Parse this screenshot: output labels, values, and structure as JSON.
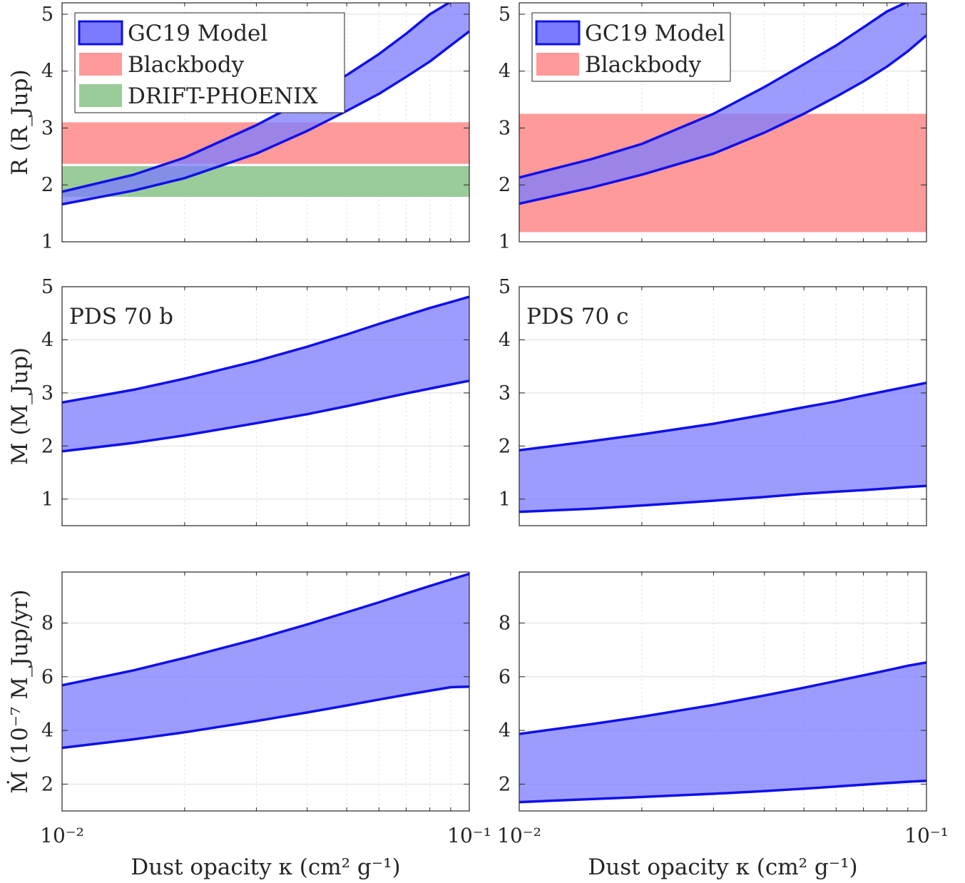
{
  "figure": {
    "xlabel": "Dust opacity κ (cm² g⁻¹)",
    "shared_legend": {
      "model": "GC19 Model",
      "blackbody": "Blackbody",
      "drift": "DRIFT-PHOENIX"
    },
    "colors": {
      "model_fill": "#7b7bff",
      "model_line": "#1010e8",
      "blackbody_fill": "#ff9a9a",
      "drift_fill": "#99cc99",
      "grid": "#dddddd",
      "axis": "#262626"
    }
  },
  "chart_data": [
    {
      "id": "r-b",
      "type": "area",
      "row": 0,
      "col": 0,
      "xscale": "log",
      "xlim": [
        0.01,
        0.1
      ],
      "ylim": [
        1,
        5.2
      ],
      "yticks": [
        1,
        2,
        3,
        4,
        5
      ],
      "yticklabels": [
        "1",
        "2",
        "3",
        "4",
        "5"
      ],
      "ylabel": "R (R_Jup)",
      "show_xticklabels": false,
      "annotation": "",
      "legend": [
        "GC19 Model",
        "Blackbody",
        "DRIFT-PHOENIX"
      ],
      "bands": [
        {
          "name": "Blackbody",
          "range": [
            2.37,
            3.1
          ],
          "color": "#ff9a9a"
        },
        {
          "name": "DRIFT-PHOENIX",
          "range": [
            1.79,
            2.33
          ],
          "color": "#99cc99"
        }
      ],
      "model": {
        "name": "GC19 Model",
        "x": [
          0.01,
          0.015,
          0.02,
          0.03,
          0.04,
          0.05,
          0.06,
          0.07,
          0.08,
          0.09,
          0.1
        ],
        "upper": [
          1.88,
          2.18,
          2.48,
          3.05,
          3.52,
          3.93,
          4.3,
          4.66,
          5.0,
          5.22,
          5.22
        ],
        "lower": [
          1.66,
          1.9,
          2.12,
          2.55,
          2.95,
          3.3,
          3.6,
          3.9,
          4.17,
          4.45,
          4.7
        ]
      }
    },
    {
      "id": "r-c",
      "type": "area",
      "row": 0,
      "col": 1,
      "xscale": "log",
      "xlim": [
        0.01,
        0.1
      ],
      "ylim": [
        1,
        5.2
      ],
      "yticks": [
        1,
        2,
        3,
        4,
        5
      ],
      "yticklabels": [
        "1",
        "2",
        "3",
        "4",
        "5"
      ],
      "ylabel": "",
      "show_xticklabels": false,
      "annotation": "",
      "legend": [
        "GC19 Model",
        "Blackbody"
      ],
      "bands": [
        {
          "name": "Blackbody",
          "range": [
            1.17,
            3.25
          ],
          "color": "#ff9a9a"
        }
      ],
      "model": {
        "name": "GC19 Model",
        "x": [
          0.01,
          0.015,
          0.02,
          0.03,
          0.04,
          0.05,
          0.06,
          0.07,
          0.08,
          0.09,
          0.1
        ],
        "upper": [
          2.13,
          2.45,
          2.72,
          3.25,
          3.72,
          4.12,
          4.45,
          4.77,
          5.05,
          5.22,
          5.22
        ],
        "lower": [
          1.67,
          1.95,
          2.18,
          2.55,
          2.92,
          3.25,
          3.55,
          3.82,
          4.08,
          4.35,
          4.63
        ]
      }
    },
    {
      "id": "m-b",
      "type": "area",
      "row": 1,
      "col": 0,
      "xscale": "log",
      "xlim": [
        0.01,
        0.1
      ],
      "ylim": [
        0.5,
        5
      ],
      "yticks": [
        1,
        2,
        3,
        4,
        5
      ],
      "yticklabels": [
        "1",
        "2",
        "3",
        "4",
        "5"
      ],
      "ylabel": "M (M_Jup)",
      "show_xticklabels": false,
      "annotation": "PDS 70 b",
      "legend": [],
      "bands": [],
      "model": {
        "name": "GC19 Model",
        "x": [
          0.01,
          0.015,
          0.02,
          0.03,
          0.04,
          0.05,
          0.06,
          0.07,
          0.08,
          0.09,
          0.1
        ],
        "upper": [
          2.82,
          3.06,
          3.27,
          3.6,
          3.87,
          4.1,
          4.3,
          4.46,
          4.6,
          4.71,
          4.81
        ],
        "lower": [
          1.9,
          2.06,
          2.2,
          2.43,
          2.6,
          2.75,
          2.88,
          2.99,
          3.08,
          3.16,
          3.23
        ]
      }
    },
    {
      "id": "m-c",
      "type": "area",
      "row": 1,
      "col": 1,
      "xscale": "log",
      "xlim": [
        0.01,
        0.1
      ],
      "ylim": [
        0.5,
        5
      ],
      "yticks": [
        1,
        2,
        3,
        4,
        5
      ],
      "yticklabels": [
        "1",
        "2",
        "3",
        "4",
        "5"
      ],
      "ylabel": "",
      "show_xticklabels": false,
      "annotation": "PDS 70 c",
      "legend": [],
      "bands": [],
      "model": {
        "name": "GC19 Model",
        "x": [
          0.01,
          0.015,
          0.02,
          0.03,
          0.04,
          0.05,
          0.06,
          0.07,
          0.08,
          0.09,
          0.1
        ],
        "upper": [
          1.92,
          2.09,
          2.22,
          2.42,
          2.59,
          2.73,
          2.84,
          2.95,
          3.04,
          3.12,
          3.19
        ],
        "lower": [
          0.76,
          0.82,
          0.88,
          0.97,
          1.04,
          1.1,
          1.14,
          1.17,
          1.2,
          1.23,
          1.25
        ]
      }
    },
    {
      "id": "mdot-b",
      "type": "area",
      "row": 2,
      "col": 0,
      "xscale": "log",
      "xlim": [
        0.01,
        0.1
      ],
      "ylim": [
        1,
        9.9
      ],
      "yticks": [
        2,
        4,
        6,
        8
      ],
      "yticklabels": [
        "2",
        "4",
        "6",
        "8"
      ],
      "ylabel": "Ṁ (10⁻⁷ M_Jup/yr)",
      "show_xticklabels": true,
      "xticks": [
        0.01,
        0.1
      ],
      "xticklabels": [
        "10⁻²",
        "10⁻¹"
      ],
      "annotation": "",
      "legend": [],
      "bands": [],
      "model": {
        "name": "GC19 Model",
        "x": [
          0.01,
          0.015,
          0.02,
          0.03,
          0.04,
          0.05,
          0.06,
          0.07,
          0.08,
          0.09,
          0.1
        ],
        "upper": [
          5.68,
          6.24,
          6.7,
          7.4,
          7.95,
          8.4,
          8.77,
          9.1,
          9.38,
          9.62,
          9.83
        ],
        "lower": [
          3.35,
          3.67,
          3.93,
          4.35,
          4.67,
          4.93,
          5.15,
          5.33,
          5.48,
          5.61,
          5.63
        ]
      }
    },
    {
      "id": "mdot-c",
      "type": "area",
      "row": 2,
      "col": 1,
      "xscale": "log",
      "xlim": [
        0.01,
        0.1
      ],
      "ylim": [
        1,
        9.9
      ],
      "yticks": [
        2,
        4,
        6,
        8
      ],
      "yticklabels": [
        "2",
        "4",
        "6",
        "8"
      ],
      "ylabel": "",
      "show_xticklabels": true,
      "xticks": [
        0.01,
        0.1
      ],
      "xticklabels": [
        "10⁻²",
        "10⁻¹"
      ],
      "annotation": "",
      "legend": [],
      "bands": [],
      "model": {
        "name": "GC19 Model",
        "x": [
          0.01,
          0.015,
          0.02,
          0.03,
          0.04,
          0.05,
          0.06,
          0.07,
          0.08,
          0.09,
          0.1
        ],
        "upper": [
          3.87,
          4.23,
          4.51,
          4.95,
          5.3,
          5.59,
          5.84,
          6.05,
          6.24,
          6.41,
          6.53
        ],
        "lower": [
          1.33,
          1.44,
          1.52,
          1.64,
          1.74,
          1.83,
          1.91,
          1.98,
          2.04,
          2.09,
          2.12
        ]
      }
    }
  ]
}
